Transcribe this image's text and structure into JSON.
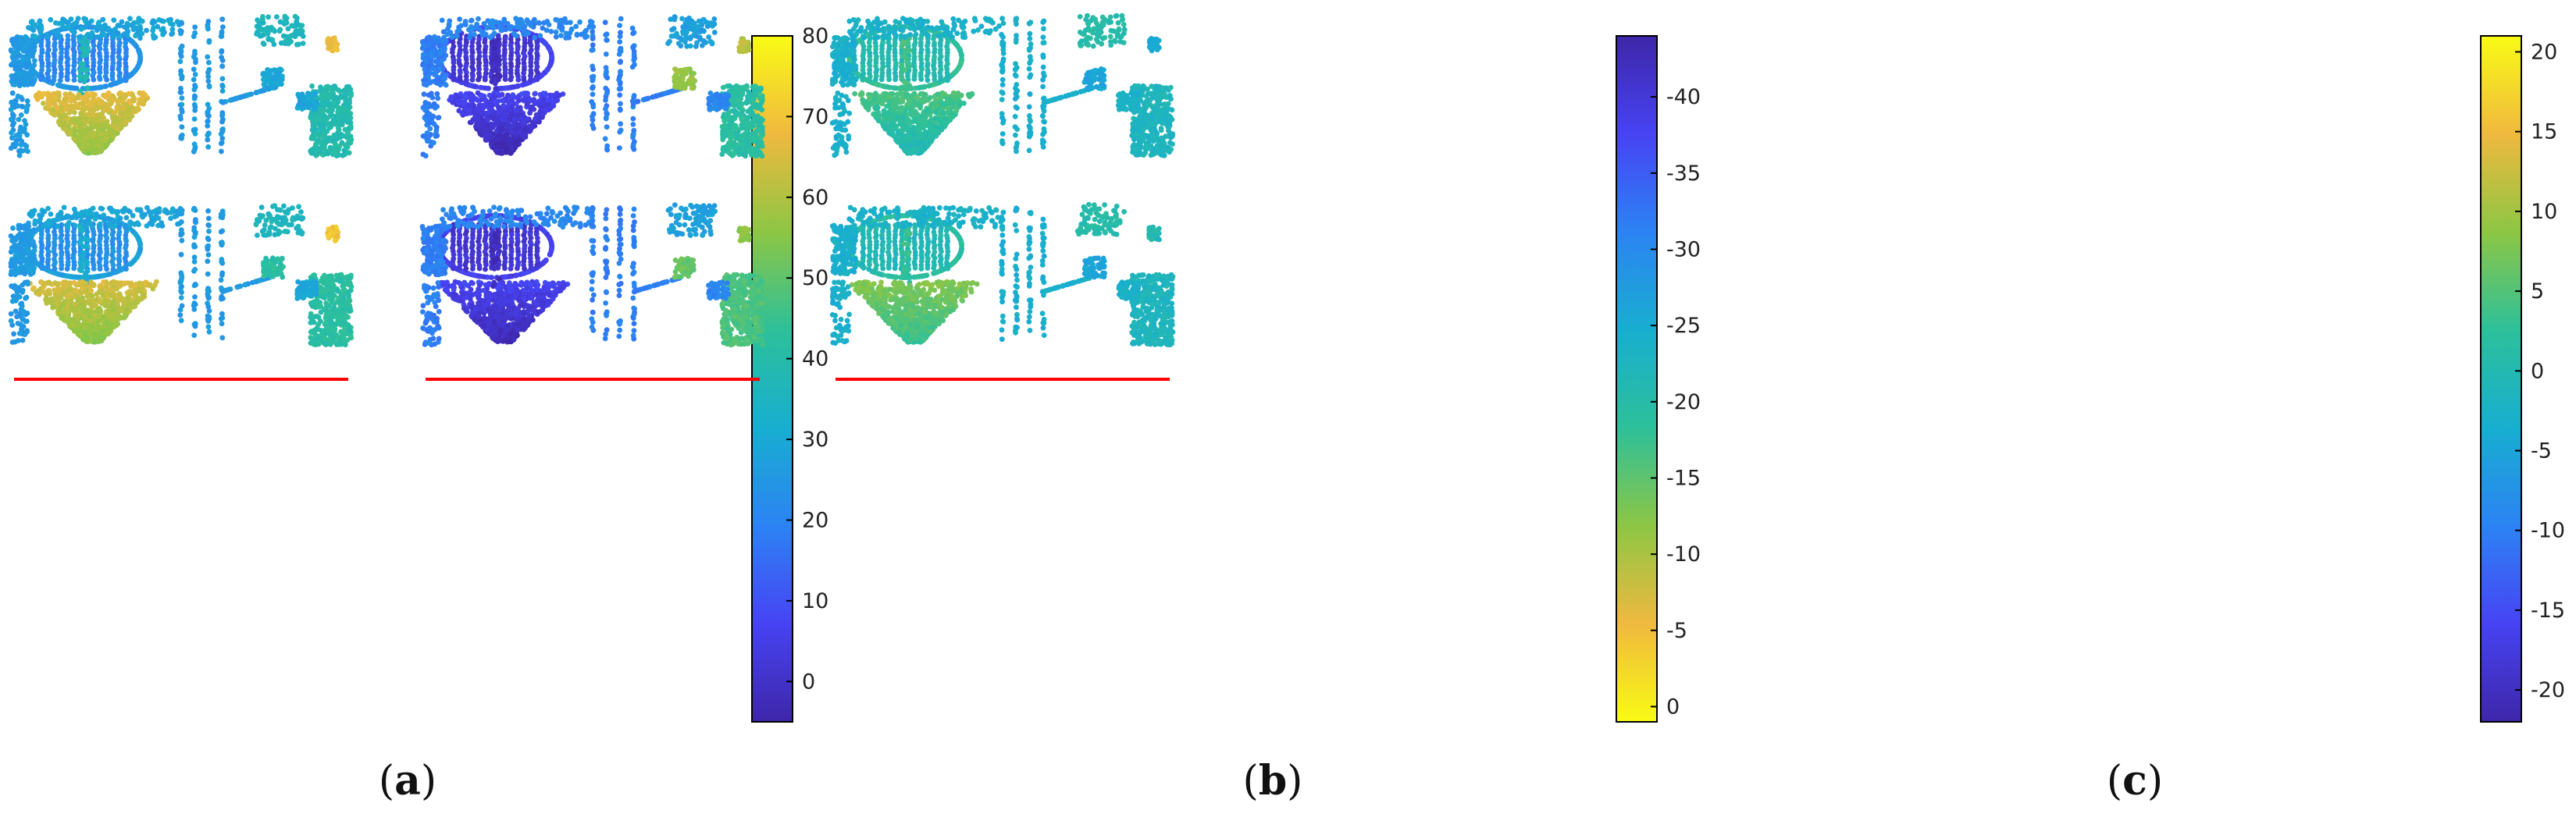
{
  "colormap": [
    "#3e26a8",
    "#4743f3",
    "#2c83f3",
    "#18aed0",
    "#2dc09a",
    "#8dc644",
    "#f0b93f",
    "#f9fb15"
  ],
  "divider_color": "#ff0000",
  "panels": [
    {
      "label": "a",
      "colorbar": {
        "min": -5,
        "max": 80,
        "ticks": [
          "80",
          "70",
          "60",
          "50",
          "40",
          "30",
          "20",
          "10",
          "0"
        ],
        "reversed": false
      },
      "scene": {
        "base": 0.4,
        "funnel": [
          0.84,
          0.82
        ],
        "ellipse": [
          0.3,
          0.33
        ],
        "mast": [
          0.5,
          0.44
        ],
        "wall": 0.36,
        "rightBlock": [
          0.52,
          0.55
        ],
        "bush": [
          0.4,
          0.55
        ],
        "yellowPatch": [
          0.86,
          0.88
        ]
      }
    },
    {
      "label": "b",
      "colorbar": {
        "min": -44,
        "max": 1,
        "ticks": [
          "0",
          "-5",
          "-10",
          "-15",
          "-20",
          "-25",
          "-30",
          "-35",
          "-40"
        ],
        "reversed": true
      },
      "scene": {
        "base": 0.3,
        "funnel": [
          0.14,
          0.14
        ],
        "ellipse": [
          0.08,
          0.08
        ],
        "mast": [
          0.04,
          0.04
        ],
        "wall": 0.28,
        "rightBlock": [
          0.55,
          0.62
        ],
        "bush": [
          0.72,
          0.66
        ],
        "yellowPatch": [
          0.78,
          0.72
        ]
      }
    },
    {
      "label": "c",
      "colorbar": {
        "min": -22,
        "max": 21,
        "ticks": [
          "20",
          "15",
          "10",
          "5",
          "0",
          "-5",
          "-10",
          "-15",
          "-20"
        ],
        "reversed": false
      },
      "scene": {
        "base": 0.45,
        "funnel": [
          0.62,
          0.7
        ],
        "ellipse": [
          0.52,
          0.5
        ],
        "mast": [
          0.6,
          0.58
        ],
        "wall": 0.44,
        "rightBlock": [
          0.48,
          0.48
        ],
        "bush": [
          0.4,
          0.4
        ],
        "yellowPatch": [
          0.42,
          0.5
        ]
      }
    }
  ]
}
